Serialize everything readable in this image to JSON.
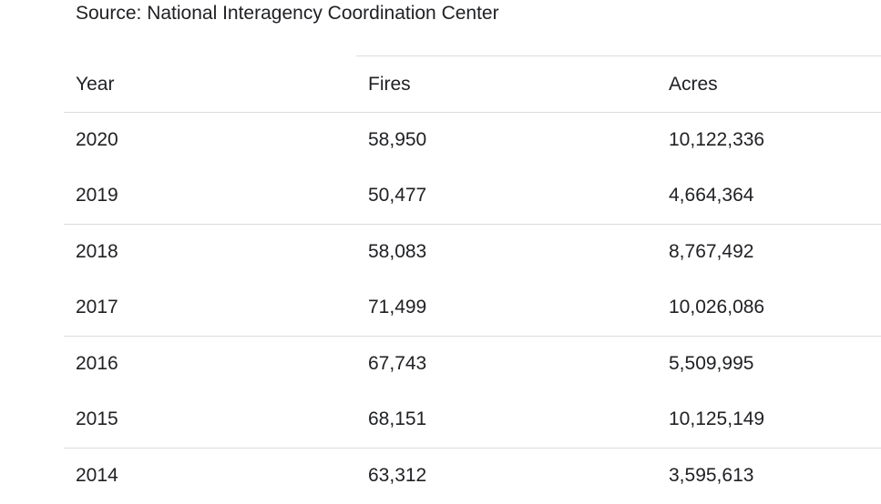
{
  "source": "Source: National Interagency Coordination Center",
  "table": {
    "headers": [
      "Year",
      "Fires",
      "Acres"
    ],
    "rows": [
      [
        "2020",
        "58,950",
        "10,122,336"
      ],
      [
        "2019",
        "50,477",
        "4,664,364"
      ],
      [
        "2018",
        "58,083",
        "8,767,492"
      ],
      [
        "2017",
        "71,499",
        "10,026,086"
      ],
      [
        "2016",
        "67,743",
        "5,509,995"
      ],
      [
        "2015",
        "68,151",
        "10,125,149"
      ],
      [
        "2014",
        "63,312",
        "3,595,613"
      ]
    ]
  },
  "colors": {
    "text": "#202124",
    "divider": "#dadce0",
    "background": "#ffffff"
  }
}
